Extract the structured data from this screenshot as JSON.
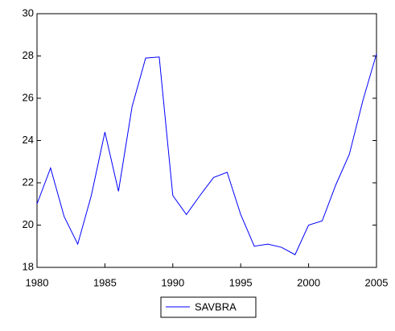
{
  "chart_data": {
    "type": "line",
    "x": [
      1980,
      1981,
      1982,
      1983,
      1984,
      1985,
      1986,
      1987,
      1988,
      1989,
      1990,
      1991,
      1992,
      1993,
      1994,
      1995,
      1996,
      1997,
      1998,
      1999,
      2000,
      2001,
      2002,
      2003,
      2004,
      2005
    ],
    "series": [
      {
        "name": "SAVBRA",
        "color": "#0000ff",
        "values": [
          21.0,
          22.7,
          20.4,
          19.1,
          21.4,
          24.4,
          21.6,
          25.6,
          27.9,
          27.95,
          21.4,
          20.5,
          21.4,
          22.25,
          22.5,
          20.5,
          19.0,
          19.1,
          18.95,
          18.6,
          20.0,
          20.2,
          21.9,
          23.35,
          25.9,
          28.1
        ]
      }
    ],
    "xlim": [
      1980,
      2005
    ],
    "xticks": [
      1980,
      1985,
      1990,
      1995,
      2000,
      2005
    ],
    "ylim": [
      18,
      30
    ],
    "yticks": [
      18,
      20,
      22,
      24,
      26,
      28,
      30
    ],
    "grid": false,
    "legend": "bottom"
  }
}
